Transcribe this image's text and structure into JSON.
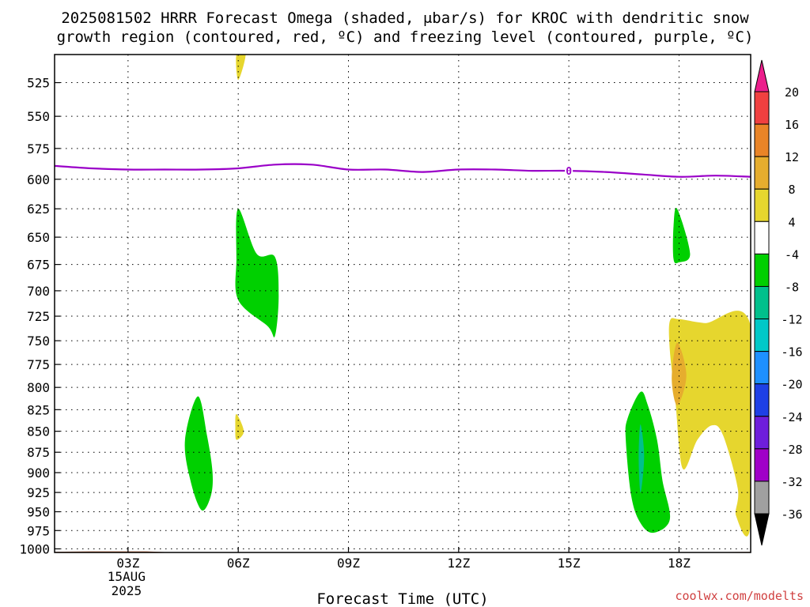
{
  "title_line1": "2025081502 HRRR Forecast Omega (shaded, μbar/s) for KROC with dendritic snow",
  "title_line2": "growth region (contoured, red, ºC) and freezing level (contoured, purple, ºC)",
  "credit": "coolwx.com/modelts",
  "chart_data": {
    "type": "time-height",
    "title": "2025081502 HRRR Forecast Omega (shaded, μbar/s) for KROC with dendritic snow growth region (contoured, red, ºC) and freezing level (contoured, purple, ºC)",
    "xlabel": "Forecast Time (UTC)",
    "ylabel": "",
    "x_range_hours_utc": [
      1.0,
      19.95
    ],
    "y_range_hPa": [
      1005,
      505
    ],
    "y_log_scale": true,
    "grid": true,
    "x_ticks": [
      {
        "hour": 3,
        "label": "03Z",
        "date_line1": "15AUG",
        "date_line2": "2025"
      },
      {
        "hour": 6,
        "label": "06Z"
      },
      {
        "hour": 9,
        "label": "09Z"
      },
      {
        "hour": 12,
        "label": "12Z"
      },
      {
        "hour": 15,
        "label": "15Z"
      },
      {
        "hour": 18,
        "label": "18Z"
      }
    ],
    "y_ticks": [
      525,
      550,
      575,
      600,
      625,
      650,
      675,
      700,
      725,
      750,
      775,
      800,
      825,
      850,
      875,
      900,
      925,
      950,
      975,
      1000
    ],
    "colorbar": {
      "ticks": [
        20,
        16,
        12,
        8,
        4,
        -4,
        -8,
        -12,
        -16,
        -20,
        -24,
        -28,
        -32,
        -36
      ],
      "colors_top_to_bottom": [
        "#ec1e8c",
        "#f04040",
        "#e98427",
        "#e6ad2e",
        "#e6d62e",
        "#ffffff",
        "#00d000",
        "#00c08c",
        "#00c8c8",
        "#1e90ff",
        "#1e40e6",
        "#6e1edc",
        "#a000c8",
        "#a0a0a0",
        "#000000"
      ]
    },
    "freezing_level": [
      {
        "h": 1.0,
        "p": 589
      },
      {
        "h": 2.0,
        "p": 591
      },
      {
        "h": 3.0,
        "p": 592
      },
      {
        "h": 4.0,
        "p": 592
      },
      {
        "h": 5.0,
        "p": 592
      },
      {
        "h": 6.0,
        "p": 591
      },
      {
        "h": 7.0,
        "p": 588
      },
      {
        "h": 8.0,
        "p": 588
      },
      {
        "h": 9.0,
        "p": 592
      },
      {
        "h": 10.0,
        "p": 592
      },
      {
        "h": 11.0,
        "p": 594
      },
      {
        "h": 12.0,
        "p": 592
      },
      {
        "h": 13.0,
        "p": 592
      },
      {
        "h": 14.0,
        "p": 593
      },
      {
        "h": 15.0,
        "p": 593
      },
      {
        "h": 16.0,
        "p": 594
      },
      {
        "h": 17.0,
        "p": 596
      },
      {
        "h": 18.0,
        "p": 598
      },
      {
        "h": 19.0,
        "p": 597
      },
      {
        "h": 19.95,
        "p": 598
      }
    ],
    "freezing_level_label": {
      "h": 15.0,
      "p": 593,
      "text": "0"
    },
    "omega_regions": [
      {
        "value_range": "4 to 8",
        "color": "#e6d62e",
        "points": [
          [
            5.95,
            505
          ],
          [
            6.2,
            505
          ],
          [
            6.0,
            523
          ]
        ]
      },
      {
        "value_range": "-8 to -4",
        "color": "#00d000",
        "points": [
          [
            6.0,
            625
          ],
          [
            6.5,
            665
          ],
          [
            7.0,
            668
          ],
          [
            7.1,
            705
          ],
          [
            7.0,
            745
          ],
          [
            6.8,
            735
          ],
          [
            6.0,
            709
          ],
          [
            5.95,
            670
          ]
        ]
      },
      {
        "value_range": "-8 to -4",
        "color": "#00d000",
        "points": [
          [
            17.95,
            625
          ],
          [
            18.3,
            665
          ],
          [
            18.0,
            673
          ],
          [
            17.85,
            670
          ],
          [
            17.85,
            640
          ]
        ]
      },
      {
        "value_range": "4 to 8",
        "color": "#e6d62e",
        "points": [
          [
            17.75,
            730
          ],
          [
            18.0,
            728
          ],
          [
            18.7,
            732
          ],
          [
            19.95,
            735
          ],
          [
            19.95,
            965
          ],
          [
            19.55,
            955
          ],
          [
            19.6,
            920
          ],
          [
            19.2,
            855
          ],
          [
            18.9,
            843
          ],
          [
            18.5,
            860
          ],
          [
            18.1,
            895
          ],
          [
            17.9,
            815
          ],
          [
            17.75,
            760
          ]
        ]
      },
      {
        "value_range": "8 to 12",
        "color": "#e6ad2e",
        "points": [
          [
            17.95,
            752
          ],
          [
            18.2,
            787
          ],
          [
            17.95,
            820
          ],
          [
            17.8,
            790
          ]
        ]
      },
      {
        "value_range": "-8 to -4",
        "color": "#00d000",
        "points": [
          [
            4.9,
            810
          ],
          [
            5.15,
            855
          ],
          [
            5.3,
            900
          ],
          [
            5.25,
            930
          ],
          [
            5.0,
            948
          ],
          [
            4.7,
            910
          ],
          [
            4.55,
            860
          ]
        ]
      },
      {
        "value_range": "4 to 8",
        "color": "#e6d62e",
        "points": [
          [
            5.95,
            830
          ],
          [
            6.15,
            850
          ],
          [
            5.95,
            860
          ],
          [
            5.92,
            845
          ]
        ]
      },
      {
        "value_range": "-8 to -4",
        "color": "#00d000",
        "points": [
          [
            16.95,
            805
          ],
          [
            17.15,
            820
          ],
          [
            17.4,
            860
          ],
          [
            17.55,
            910
          ],
          [
            17.75,
            960
          ],
          [
            17.3,
            978
          ],
          [
            16.95,
            965
          ],
          [
            16.7,
            930
          ],
          [
            16.55,
            860
          ],
          [
            16.6,
            835
          ]
        ]
      },
      {
        "value_range": "-12 to -8",
        "color": "#00c08c",
        "points": [
          [
            16.95,
            842
          ],
          [
            17.05,
            880
          ],
          [
            16.95,
            925
          ],
          [
            16.9,
            880
          ]
        ]
      }
    ],
    "terrain": [
      {
        "h": 1.0,
        "p": 1004
      },
      {
        "h": 2.0,
        "p": 1003.5
      },
      {
        "h": 3.5,
        "p": 1003.5
      },
      {
        "h": 4.0,
        "p": 1004.5
      },
      {
        "h": 6.0,
        "p": 1004.5
      },
      {
        "h": 7.5,
        "p": 1004.8
      },
      {
        "h": 9.0,
        "p": 1005
      },
      {
        "h": 12.0,
        "p": 1005
      },
      {
        "h": 15.0,
        "p": 1005
      },
      {
        "h": 18.0,
        "p": 1005
      },
      {
        "h": 19.95,
        "p": 1004.2
      }
    ]
  }
}
